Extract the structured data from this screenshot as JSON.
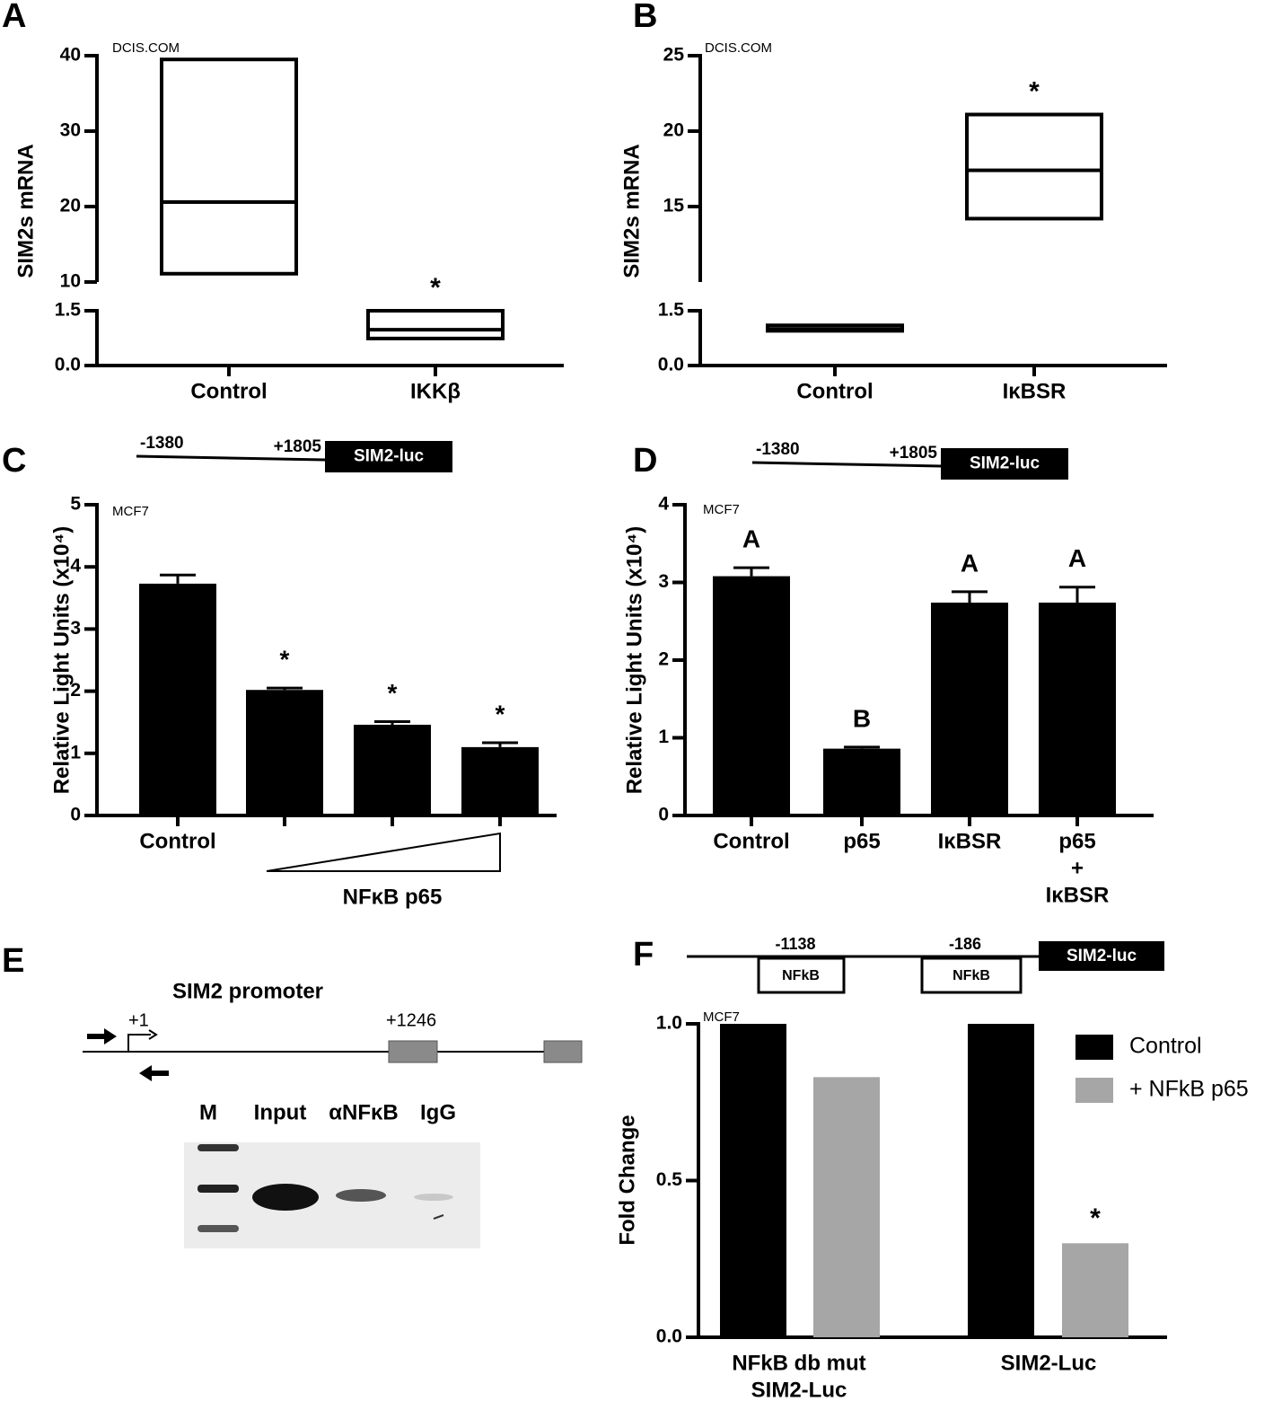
{
  "chart_data": [
    {
      "panel": "A",
      "type": "box",
      "source": "DCIS.COM",
      "ylabel": "SIM2s mRNA",
      "categories": [
        "Control",
        "IKKβ"
      ],
      "low": [
        11.1,
        0.74
      ],
      "median": [
        20.6,
        0.98
      ],
      "high": [
        39.5,
        1.5
      ],
      "annotations": [
        null,
        "*"
      ],
      "ylim": [
        0,
        40
      ],
      "axis_break": [
        1.5,
        10
      ],
      "yticks": [
        {
          "value": 0,
          "label": "0.0"
        },
        1.5,
        10,
        20,
        30,
        40
      ]
    },
    {
      "panel": "B",
      "type": "box",
      "source": "DCIS.COM",
      "ylabel": "SIM2s mRNA",
      "categories": [
        "Control",
        "IκBSR"
      ],
      "low": [
        0.95,
        14.2
      ],
      "median": [
        1.0,
        17.4
      ],
      "high": [
        1.1,
        21.1
      ],
      "annotations": [
        null,
        "*"
      ],
      "ylim": [
        0,
        25
      ],
      "axis_break": [
        1.5,
        10
      ],
      "yticks": [
        {
          "value": 0,
          "label": "0.0"
        },
        1.5,
        15,
        20,
        25
      ]
    },
    {
      "panel": "C",
      "type": "bar",
      "construct": {
        "start": "-1380",
        "end": "+1805",
        "reporter": "SIM2-luc"
      },
      "source": "MCF7",
      "ylabel": "Relative Light Units (x10⁴)",
      "categories": [
        "Control",
        null,
        null,
        null
      ],
      "group_label": "NFκB p65",
      "values": [
        3.73,
        2.02,
        1.46,
        1.1
      ],
      "errors": [
        0.14,
        0.03,
        0.05,
        0.07
      ],
      "annotations": [
        null,
        "*",
        "*",
        "*"
      ],
      "color": "#000000",
      "ylim": [
        0,
        5
      ],
      "yticks": [
        0,
        1,
        2,
        3,
        4,
        5
      ]
    },
    {
      "panel": "D",
      "type": "bar",
      "construct": {
        "start": "-1380",
        "end": "+1805",
        "reporter": "SIM2-luc"
      },
      "source": "MCF7",
      "ylabel": "Relative Light Units (x10⁴)",
      "categories": [
        [
          "Control"
        ],
        [
          "p65"
        ],
        [
          "IκBSR"
        ],
        [
          "p65",
          "+",
          "IκBSR"
        ]
      ],
      "values": [
        3.08,
        0.86,
        2.74,
        2.74
      ],
      "errors": [
        0.11,
        0.02,
        0.14,
        0.2
      ],
      "annotations": [
        "A",
        "B",
        "A",
        "A"
      ],
      "color": "#000000",
      "ylim": [
        0,
        4
      ],
      "yticks": [
        0,
        1,
        2,
        3,
        4
      ]
    },
    {
      "panel": "F",
      "type": "grouped_bar",
      "construct": {
        "sites": [
          {
            "position": "-1138",
            "label": "NFkB"
          },
          {
            "position": "-186",
            "label": "NFkB"
          }
        ],
        "reporter": "SIM2-luc"
      },
      "source": "MCF7",
      "ylabel": "Fold Change",
      "categories": [
        [
          "NFkB db mut",
          "SIM2-Luc"
        ],
        [
          "SIM2-Luc"
        ]
      ],
      "series": [
        {
          "name": "Control",
          "color": "#000000",
          "values": [
            1.0,
            1.0
          ]
        },
        {
          "name": "+ NFkB p65",
          "color": "#a6a6a6",
          "values": [
            0.83,
            0.3
          ],
          "annotations": [
            null,
            "*"
          ]
        }
      ],
      "ylim": [
        0,
        1
      ],
      "yticks": [
        {
          "value": 0,
          "label": "0.0"
        },
        0.5,
        {
          "value": 1,
          "label": "1.0"
        }
      ],
      "legend": "top-right"
    }
  ],
  "panel_e": {
    "panel": "E",
    "title": "SIM2 promoter",
    "positions": [
      "+1",
      "+1246"
    ],
    "lanes": [
      "M",
      "Input",
      "αNFκB",
      "IgG"
    ]
  }
}
